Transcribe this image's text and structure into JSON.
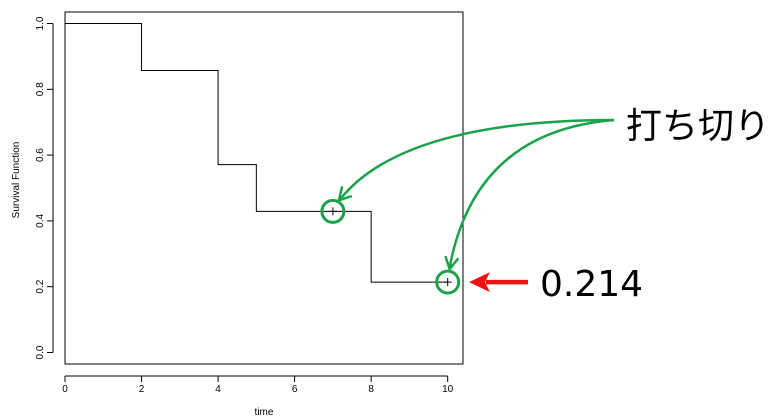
{
  "chart_data": {
    "type": "line",
    "title": "",
    "xlabel": "time",
    "ylabel": "Survival Function",
    "xlim": [
      0,
      10.4
    ],
    "ylim": [
      -0.035,
      1.035
    ],
    "x_ticks": [
      0,
      2,
      4,
      6,
      8,
      10
    ],
    "y_ticks": [
      0.0,
      0.2,
      0.4,
      0.6,
      0.8,
      1.0
    ],
    "x_tick_labels": [
      "0",
      "2",
      "4",
      "6",
      "8",
      "10"
    ],
    "y_tick_labels": [
      "0.0",
      "0.2",
      "0.4",
      "0.6",
      "0.8",
      "1.0"
    ],
    "grid": false,
    "series": [
      {
        "style": "step",
        "color": "#000000",
        "points": [
          {
            "x": 0,
            "y": 1.0
          },
          {
            "x": 2,
            "y": 0.857
          },
          {
            "x": 4,
            "y": 0.571
          },
          {
            "x": 5,
            "y": 0.429
          },
          {
            "x": 8,
            "y": 0.214
          },
          {
            "x": 10,
            "y": 0.214
          }
        ]
      }
    ],
    "censored_points": [
      {
        "x": 7,
        "y": 0.429
      },
      {
        "x": 10,
        "y": 0.214
      }
    ],
    "annotations": {
      "censor_label": "打ち切り",
      "value_label": "0.214",
      "censor_color": "#1aa34a",
      "value_arrow_color": "#ee1111"
    }
  }
}
